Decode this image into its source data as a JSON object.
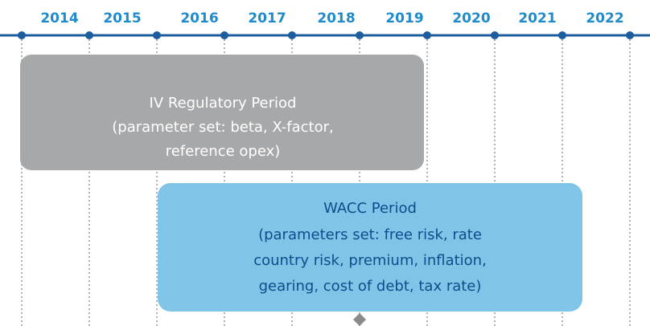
{
  "timeline": {
    "years": [
      "2014",
      "2015",
      "2016",
      "2017",
      "2018",
      "2019",
      "2020",
      "2021",
      "2022"
    ]
  },
  "periods": [
    {
      "lines": [
        "IV Regulatory Period",
        "(parameter set: beta, X-factor,",
        "reference opex)"
      ]
    },
    {
      "lines": [
        "WACC Period",
        "(parameters set: free risk, rate",
        "country risk, premium, inflation,",
        "gearing, cost of debt, tax rate)"
      ]
    }
  ]
}
